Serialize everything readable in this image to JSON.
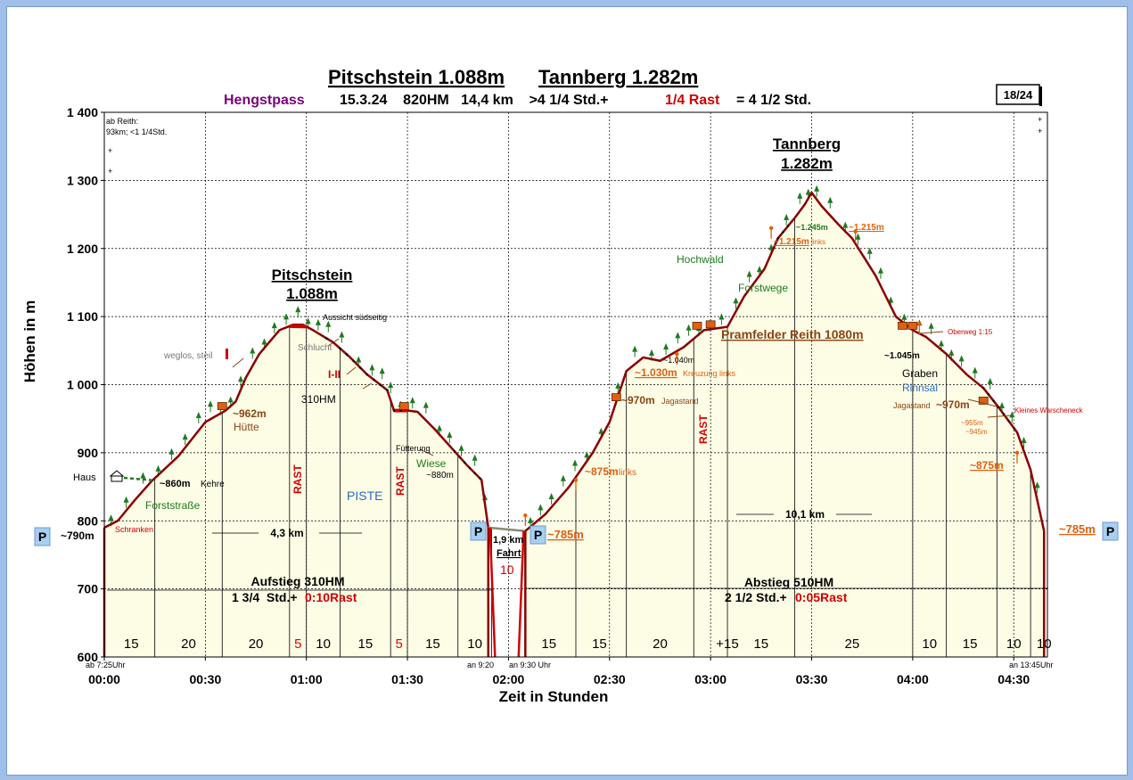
{
  "chart_data": {
    "type": "area",
    "title_left": "Pitschstein 1.088m",
    "title_right": "Tannberg 1.282m",
    "subtitle": {
      "start": "Hengstpass",
      "details": "15.3.24    820HM   14,4 km    >4 1/4 Std.+",
      "rest": "1/4 Rast",
      "total": "= 4 1/2 Std."
    },
    "page_badge": "18/24",
    "ylabel": "Höhen in m",
    "xlabel": "Zeit in Stunden",
    "ylim": [
      600,
      1400
    ],
    "xlim_min": [
      0,
      280
    ],
    "y_ticks": [
      {
        "v": 600,
        "label": "600"
      },
      {
        "v": 700,
        "label": "700"
      },
      {
        "v": 800,
        "label": "800"
      },
      {
        "v": 900,
        "label": "900"
      },
      {
        "v": 1000,
        "label": "1 000"
      },
      {
        "v": 1100,
        "label": "1 100"
      },
      {
        "v": 1200,
        "label": "1 200"
      },
      {
        "v": 1300,
        "label": "1 300"
      },
      {
        "v": 1400,
        "label": "1 400"
      }
    ],
    "x_ticks": [
      {
        "t": 0,
        "label": "00:00"
      },
      {
        "t": 30,
        "label": "00:30"
      },
      {
        "t": 60,
        "label": "01:00"
      },
      {
        "t": 90,
        "label": "01:30"
      },
      {
        "t": 120,
        "label": "02:00"
      },
      {
        "t": 150,
        "label": "02:30"
      },
      {
        "t": 180,
        "label": "03:00"
      },
      {
        "t": 210,
        "label": "03:30"
      },
      {
        "t": 240,
        "label": "04:00"
      },
      {
        "t": 270,
        "label": "04:30"
      }
    ],
    "segment_lines_t": [
      15,
      35,
      55,
      60,
      70,
      85,
      90,
      105,
      115,
      140,
      155,
      175,
      185,
      205,
      240,
      250,
      265,
      275
    ],
    "segment_durations": [
      {
        "t": 8,
        "label": "15",
        "color": "#000"
      },
      {
        "t": 25,
        "label": "20",
        "color": "#000"
      },
      {
        "t": 45,
        "label": "20",
        "color": "#000"
      },
      {
        "t": 57.5,
        "label": "5",
        "color": "#d00"
      },
      {
        "t": 65,
        "label": "10",
        "color": "#000"
      },
      {
        "t": 77.5,
        "label": "15",
        "color": "#000"
      },
      {
        "t": 87.5,
        "label": "5",
        "color": "#d00"
      },
      {
        "t": 97.5,
        "label": "15",
        "color": "#000"
      },
      {
        "t": 110,
        "label": "10",
        "color": "#000"
      },
      {
        "t": 132,
        "label": "15",
        "color": "#000"
      },
      {
        "t": 147,
        "label": "15",
        "color": "#000"
      },
      {
        "t": 165,
        "label": "20",
        "color": "#000"
      },
      {
        "t": 185,
        "label": "+15",
        "color": "#000"
      },
      {
        "t": 195,
        "label": "15",
        "color": "#000"
      },
      {
        "t": 222,
        "label": "25",
        "color": "#000"
      },
      {
        "t": 245,
        "label": "10",
        "color": "#000"
      },
      {
        "t": 257,
        "label": "15",
        "color": "#000"
      },
      {
        "t": 270,
        "label": "10",
        "color": "#000"
      },
      {
        "t": 279,
        "label": "10",
        "color": "#000"
      }
    ],
    "series": [
      {
        "name": "Aufstieg Pitschstein",
        "x": [
          0,
          4,
          9,
          14,
          22,
          30,
          36,
          39,
          42,
          46,
          52,
          56,
          59,
          62,
          68,
          73,
          78,
          84,
          86,
          90,
          93,
          98,
          104,
          108,
          112,
          114
        ],
        "y": [
          790,
          800,
          830,
          858,
          895,
          945,
          962,
          975,
          1010,
          1045,
          1080,
          1088,
          1088,
          1080,
          1062,
          1040,
          1015,
          992,
          962,
          962,
          960,
          935,
          902,
          880,
          860,
          790
        ],
        "color": "#8b0000"
      },
      {
        "name": "Fahrt",
        "x": [
          114,
          125
        ],
        "y": [
          790,
          785
        ],
        "color": "#8a8a70"
      },
      {
        "name": "Tannberg",
        "x": [
          125,
          131,
          138,
          145,
          150,
          155,
          160,
          165,
          172,
          178,
          185,
          190,
          196,
          200,
          205,
          208,
          210,
          213,
          218,
          222,
          229,
          235,
          240,
          244,
          250,
          256,
          261,
          265,
          271,
          275,
          279
        ],
        "y": [
          785,
          810,
          850,
          900,
          945,
          1020,
          1040,
          1035,
          1055,
          1080,
          1085,
          1130,
          1170,
          1215,
          1245,
          1265,
          1282,
          1262,
          1235,
          1215,
          1160,
          1100,
          1080,
          1070,
          1045,
          1015,
          995,
          970,
          930,
          875,
          785
        ],
        "color": "#8b0000"
      }
    ],
    "peak_labels": [
      {
        "name": "Pitschstein",
        "elev": "1.088m"
      },
      {
        "name": "Tannberg",
        "elev": "1.282m"
      }
    ],
    "annotations": {
      "reith_info_1": "ab Reith:",
      "reith_info_2": "93km;  <1 1/4Std.",
      "plus": "+",
      "parking": "P",
      "start_elev": "~790m",
      "schranken": "Schranken",
      "haus": "Haus",
      "kehre_val": "~860m",
      "kehre": "Kehre",
      "forststrasse": "Forststraße",
      "huette_val": "~962m",
      "huette": "Hütte",
      "weglos": "weglos, steil",
      "aussicht": "Aussicht südseitig",
      "schlucht": "Schlucht",
      "i_ii": "I-II",
      "hm310": "310HM",
      "rast": "RAST",
      "piste": "PISTE",
      "fuetterung": "Fütterung",
      "wiese": "Wiese",
      "m880": "~880m",
      "fahrt_km": "1,9 km",
      "fahrt": "Fahrt",
      "fahrt_min": "10",
      "park2_elev": "~785m",
      "links_val": "~875m",
      "links": "links",
      "jagastand": "Jagastand",
      "m970": "~970m",
      "m1030": "~1.030m",
      "kreuzung": "Kreuzung links",
      "m1040": "~1.040m",
      "hochwald": "Hochwald",
      "forstwege": "Forstwege",
      "reith_hut": "Pramfelder Reith 1080m",
      "m1215": "~1.215m",
      "m1245": "~1.245m",
      "graben": "Graben",
      "rinnsal": "Rinnsal",
      "m1045": "~1.045m",
      "oberweg": "Oberweg 1:15",
      "warscheneck": "Kleines Warscheneck",
      "m955": "~955m",
      "m945": "~945m",
      "m875": "~875m",
      "end_elev": "~785m",
      "dist1": "4,3 km",
      "dist2": "10,1 km",
      "aufstieg_1": "Aufstieg 310HM",
      "aufstieg_2a": "1 3/4  Std.+ ",
      "aufstieg_2b": "0:10Rast",
      "abstieg_1": "Abstieg 510HM",
      "abstieg_2a": "2 1/2  Std.+",
      "abstieg_2b": "0:05Rast",
      "time_start": "ab 7:25Uhr",
      "time_an1": "an 9:20",
      "time_an2": "an 9:30 Uhr",
      "time_end": "an 13:45Uhr",
      "seg_5": "5"
    },
    "colors": {
      "profile": "#8b0000",
      "fill": "#fdfde6",
      "tree": "#1e7a1e",
      "accent_red": "#d00000",
      "orange": "#e06010",
      "brown": "#8b4513",
      "purple": "#7a007a",
      "blue": "#2a6cc0",
      "park_bg": "#a8cff0"
    }
  }
}
